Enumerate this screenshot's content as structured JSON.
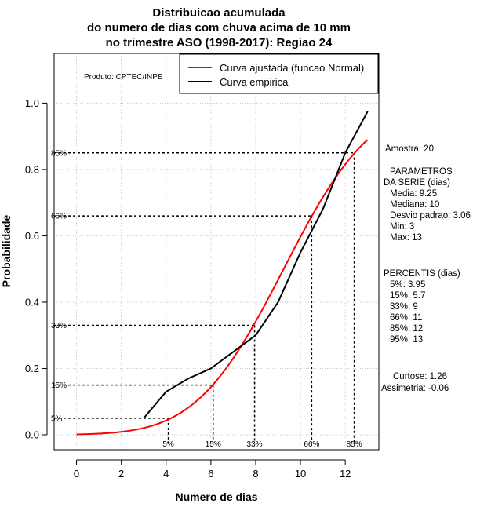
{
  "chart_data": {
    "type": "line",
    "title_lines": [
      "Distribuicao acumulada",
      "do numero de dias com chuva acima de 10 mm",
      "no trimestre ASO (1998-2017): Regiao 24"
    ],
    "xlabel": "Numero de dias",
    "ylabel": "Probabilidade",
    "xlim": [
      -1,
      13.5
    ],
    "ylim": [
      -0.045,
      1.15
    ],
    "x_ticks": [
      0,
      2,
      4,
      6,
      8,
      10,
      12
    ],
    "x_tick_labels": [
      "0",
      "2",
      "4",
      "6",
      "8",
      "10",
      "12"
    ],
    "y_ticks": [
      0.0,
      0.2,
      0.4,
      0.6,
      0.8,
      1.0
    ],
    "y_tick_labels": [
      "0.0",
      "0.2",
      "0.4",
      "0.6",
      "0.8",
      "1.0"
    ],
    "grid": true,
    "producer_note": "Produto: CPTEC/INPE",
    "legend": {
      "position": "top-right",
      "entries": [
        {
          "label": "Curva ajustada (funcao Normal)",
          "color": "#ff0000"
        },
        {
          "label": "Curva empirica",
          "color": "#000000"
        }
      ]
    },
    "series": [
      {
        "name": "Curva ajustada (funcao Normal)",
        "color": "#ff0000",
        "distribution": "normal",
        "mean": 9.25,
        "sd": 3.06,
        "x_range": [
          0,
          13
        ]
      },
      {
        "name": "Curva empirica",
        "color": "#000000",
        "x": [
          3,
          4,
          5,
          6,
          7,
          8,
          9,
          10,
          11,
          12,
          13
        ],
        "y": [
          0.05,
          0.13,
          0.17,
          0.2,
          0.25,
          0.3,
          0.4,
          0.55,
          0.68,
          0.85,
          0.975
        ]
      }
    ],
    "percentile_markers": [
      {
        "label_y": "5%",
        "label_x": "5%",
        "prob": 0.05,
        "x": 4.1
      },
      {
        "label_y": "15%",
        "label_x": "15%",
        "prob": 0.15,
        "x": 6.1
      },
      {
        "label_y": "33%",
        "label_x": "33%",
        "prob": 0.33,
        "x": 7.95
      },
      {
        "label_y": "66%",
        "label_x": "66%",
        "prob": 0.66,
        "x": 10.5
      },
      {
        "label_y": "85%",
        "label_x": "85%",
        "prob": 0.85,
        "x": 12.4
      }
    ],
    "side_panel": {
      "sample": "Amostra: 20",
      "params_heading_1": "PARAMETROS",
      "params_heading_2": "DA SERIE (dias)",
      "params": [
        "Media: 9.25",
        "Mediana: 10",
        "Desvio padrao: 3.06",
        "Min: 3",
        "Max: 13"
      ],
      "percentis_heading": "PERCENTIS (dias)",
      "percentis": [
        "5%: 3.95",
        "15%: 5.7",
        "33%: 9",
        "66%: 11",
        "85%: 12",
        "95%: 13"
      ],
      "curtose": "Curtose: 1.26",
      "assimetria": "Assimetria: -0.06"
    }
  }
}
